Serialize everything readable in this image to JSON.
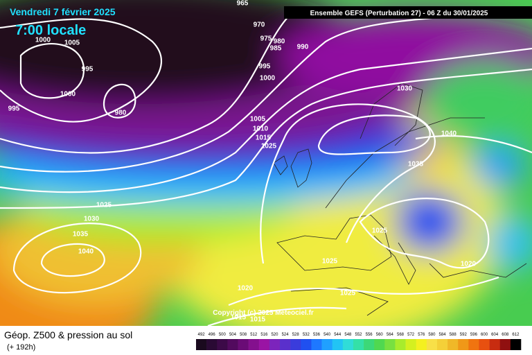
{
  "header": {
    "date": "Vendredi 7 février 2025",
    "time": "7:00 locale",
    "run": "Ensemble GEFS  (Perturbation 27)  -  06 Z du 30/01/2025"
  },
  "copyright": "Copyright (c) 2025 Meteociel.fr",
  "isobar_labels": [
    "965",
    "970",
    "975",
    "980",
    "985",
    "990",
    "1000",
    "1005",
    "995",
    "1000",
    "980",
    "995",
    "995",
    "1000",
    "1005",
    "1010",
    "1015",
    "1025",
    "1030",
    "1040",
    "1035",
    "1025",
    "1030",
    "1035",
    "1040",
    "1025",
    "1025",
    "1020",
    "1020",
    "1025",
    "1015",
    "1015"
  ],
  "footer": {
    "title": "Géop. Z500 & pression au sol",
    "lead": "(+ 192h)"
  },
  "scale": {
    "labels": [
      492,
      496,
      500,
      504,
      508,
      512,
      516,
      520,
      524,
      528,
      532,
      536,
      540,
      544,
      548,
      552,
      556,
      560,
      564,
      568,
      572,
      576,
      580,
      584,
      588,
      592,
      596,
      600,
      604,
      608,
      612
    ],
    "colors": [
      "#1a0a1e",
      "#2a0a34",
      "#3c0a48",
      "#520a5e",
      "#6a0c76",
      "#84108e",
      "#9a14a4",
      "#7c24bc",
      "#5a30cc",
      "#3a3cdc",
      "#2050f0",
      "#1e78ff",
      "#20a0ff",
      "#22c4f4",
      "#30dcd8",
      "#34e0a8",
      "#3cd878",
      "#50d850",
      "#78e040",
      "#a8ec2c",
      "#d4f020",
      "#f4f020",
      "#f8e048",
      "#f4d038",
      "#f0b828",
      "#f09818",
      "#f07410",
      "#e85010",
      "#c82c10",
      "#901010",
      "#000000"
    ]
  }
}
